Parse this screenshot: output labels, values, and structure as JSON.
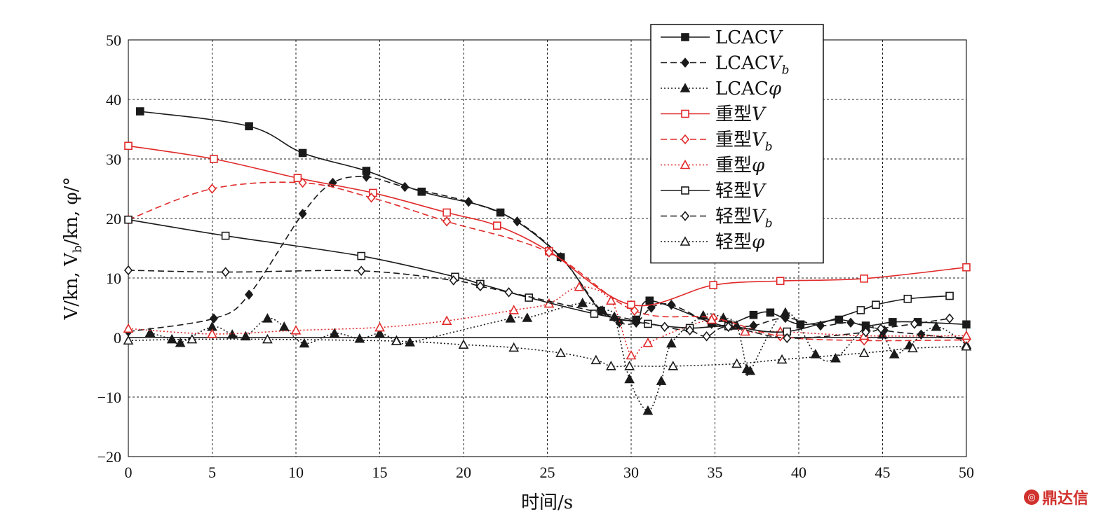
{
  "chart_data": {
    "type": "line",
    "xlabel": "时间/s",
    "ylabel": "V/kn, V_b/kn, φ/°",
    "xlim": [
      0,
      50
    ],
    "ylim": [
      -20,
      50
    ],
    "xticks": [
      "0",
      "5",
      "10",
      "15",
      "20",
      "25",
      "30",
      "35",
      "40",
      "45",
      "50"
    ],
    "yticks": [
      "50",
      "40",
      "30",
      "20",
      "10",
      "0",
      "−10",
      "−20"
    ],
    "grid": true,
    "legend_position": "top-right",
    "series": [
      {
        "name": "LCACV",
        "label_main": "LCAC",
        "label_var": "V",
        "label_sub": "",
        "color": "#1a1a1a",
        "dash": "solid",
        "marker": "square-filled",
        "x": [
          0.7,
          7.2,
          10.4,
          14.2,
          17.5,
          22.2,
          25.8,
          28.2,
          30.3,
          31.1,
          34.8,
          35.8,
          37.3,
          38.3,
          40.1,
          42.4,
          44.0,
          45.6,
          47.1,
          50.0
        ],
        "y": [
          38,
          35.5,
          31,
          28,
          24.5,
          21,
          13.5,
          4.5,
          3.0,
          6.2,
          2.5,
          2.2,
          3.8,
          4.2,
          2.2,
          3.0,
          2.0,
          2.6,
          2.6,
          2.2
        ]
      },
      {
        "name": "LCACVb",
        "label_main": "LCAC",
        "label_var": "V",
        "label_sub": "b",
        "color": "#1a1a1a",
        "dash": "long",
        "marker": "diamond-filled",
        "x": [
          0,
          5.1,
          7.2,
          10.4,
          12.2,
          14.2,
          16.5,
          20.3,
          23.2,
          25.8,
          28.2,
          29.3,
          30.3,
          31.2,
          32.4,
          34.8,
          35.8,
          37.3,
          39.2,
          41.3,
          43.1,
          45.1,
          47.3,
          50.0
        ],
        "y": [
          1,
          3.2,
          7.2,
          20.8,
          26,
          27,
          25.3,
          22.8,
          19.5,
          13.5,
          4.5,
          2.5,
          2.5,
          5,
          5.5,
          2.3,
          1.8,
          2.0,
          3.3,
          2.0,
          2.5,
          1.2,
          0.5,
          -0.3
        ]
      },
      {
        "name": "LCACφ",
        "label_main": "LCAC",
        "label_var": "φ",
        "label_sub": "",
        "color": "#1a1a1a",
        "dash": "dotted",
        "marker": "triangle-filled",
        "x": [
          1.3,
          2.6,
          3.1,
          5.0,
          6.2,
          7.0,
          8.3,
          9.3,
          10.5,
          12.3,
          13.8,
          15.0,
          16.0,
          16.8,
          22.8,
          23.8,
          27.1,
          28.3,
          29.0,
          29.9,
          31.0,
          31.8,
          32.4,
          34.3,
          35.5,
          36.3,
          36.9,
          37.1,
          39.2,
          41.0,
          42.2,
          44.0,
          45.0,
          45.7,
          46.6,
          48.2,
          50.0
        ],
        "y": [
          0.8,
          -0.3,
          -0.9,
          1.8,
          0.5,
          0.2,
          3.2,
          1.8,
          -1.0,
          0.7,
          -0.2,
          0.7,
          -0.5,
          -0.8,
          3.2,
          3.3,
          5.8,
          4.5,
          3.5,
          -7,
          -12.3,
          -7.3,
          -1.0,
          3.7,
          3.3,
          2.0,
          -5.3,
          -5.6,
          4.2,
          -2.8,
          -3.5,
          1.7,
          0.5,
          -2.8,
          -1.3,
          1.8,
          -1.2
        ]
      },
      {
        "name": "重型V",
        "label_main": "重型",
        "label_var": "V",
        "label_sub": "",
        "color": "#e02a2a",
        "dash": "solid",
        "marker": "square-open",
        "x": [
          0,
          5.1,
          10.1,
          14.6,
          19.0,
          22.0,
          25.1,
          30.0,
          34.9,
          38.9,
          43.9,
          50.0
        ],
        "y": [
          32.2,
          30,
          26.8,
          24.3,
          21,
          18.8,
          14.5,
          5.5,
          8.8,
          9.5,
          9.9,
          11.8
        ]
      },
      {
        "name": "重型Vb",
        "label_main": "重型",
        "label_var": "V",
        "label_sub": "b",
        "color": "#e02a2a",
        "dash": "long",
        "marker": "diamond-open",
        "x": [
          0,
          5.0,
          10.4,
          14.5,
          19.0,
          25.1,
          30.2,
          34.9,
          38.9,
          43.9,
          50.0
        ],
        "y": [
          19.8,
          25,
          26,
          23.5,
          19.5,
          14.3,
          4.5,
          3.3,
          0.2,
          -0.5,
          -0.4
        ]
      },
      {
        "name": "重型φ",
        "label_main": "重型",
        "label_var": "φ",
        "label_sub": "",
        "color": "#e02a2a",
        "dash": "dotted",
        "marker": "triangle-open",
        "x": [
          0,
          5.0,
          10.0,
          15.0,
          19.0,
          23.0,
          25.1,
          26.9,
          28.8,
          30.0,
          31.0,
          34.8,
          36.8,
          38.9,
          43.9,
          50.0
        ],
        "y": [
          1.5,
          0.6,
          1.2,
          1.7,
          2.8,
          4.6,
          5.7,
          8.5,
          6.2,
          -3.0,
          -0.9,
          3.0,
          1.0,
          1.0,
          0.3,
          0.3
        ]
      },
      {
        "name": "轻型V",
        "label_main": "轻型",
        "label_var": "V",
        "label_sub": "",
        "color": "#1a1a1a",
        "dash": "solid",
        "marker": "square-open",
        "x": [
          0,
          5.8,
          13.9,
          19.5,
          21.0,
          23.9,
          27.8,
          31.0,
          33.5,
          35.8,
          39.3,
          43.7,
          44.6,
          46.5,
          49.0
        ],
        "y": [
          19.8,
          17.1,
          13.7,
          10.2,
          9.0,
          6.7,
          4.0,
          2.3,
          1.6,
          1.9,
          1.0,
          4.6,
          5.5,
          6.5,
          7.0
        ]
      },
      {
        "name": "轻型Vb",
        "label_main": "轻型",
        "label_var": "V",
        "label_sub": "b",
        "color": "#1a1a1a",
        "dash": "long",
        "marker": "diamond-open",
        "x": [
          0,
          5.8,
          13.9,
          19.4,
          21.0,
          22.7,
          32.0,
          33.5,
          34.5,
          35.8,
          39.3,
          44.0,
          44.9,
          46.9,
          49.0
        ],
        "y": [
          11.3,
          11.0,
          11.2,
          9.6,
          8.6,
          7.6,
          1.8,
          1.2,
          0.2,
          1.8,
          -0.1,
          0.9,
          1.5,
          2.3,
          3.2
        ]
      },
      {
        "name": "轻型φ",
        "label_main": "轻型",
        "label_var": "φ",
        "label_sub": "",
        "color": "#1a1a1a",
        "dash": "dotted",
        "marker": "triangle-open",
        "x": [
          0,
          3.8,
          8.3,
          16.0,
          20.0,
          23.0,
          25.8,
          27.9,
          28.8,
          29.9,
          32.5,
          36.3,
          39.0,
          43.9,
          46.8,
          50.0
        ],
        "y": [
          -0.5,
          -0.3,
          -0.3,
          -0.6,
          -1.2,
          -1.7,
          -2.6,
          -3.8,
          -4.8,
          -4.8,
          -4.8,
          -4.4,
          -3.7,
          -2.6,
          -1.8,
          -1.5
        ]
      }
    ]
  },
  "watermark": {
    "text": "鼎达信"
  }
}
